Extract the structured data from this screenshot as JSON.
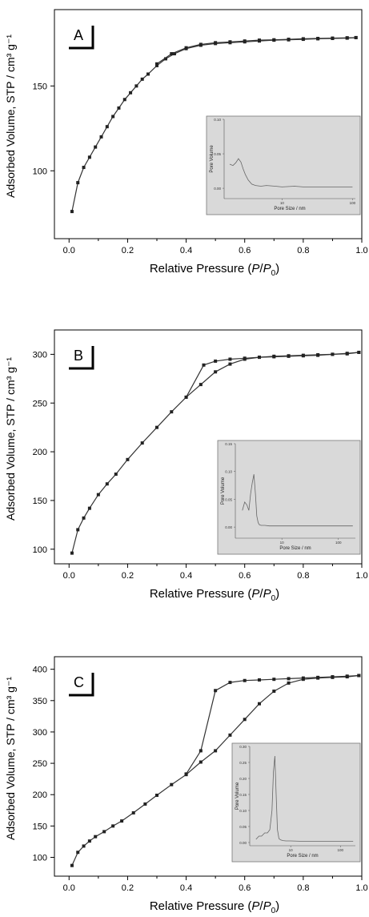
{
  "figure": {
    "y_axis_label": "Adsorbed Volume, STP / cm³ g⁻¹"
  },
  "chart_data": [
    {
      "type": "line",
      "panel_label": "A",
      "xlabel": "Relative Pressure (P/P0)",
      "ylabel": "Adsorbed Volume, STP / cm3 g-1",
      "xlim": [
        -0.05,
        1.0
      ],
      "ylim": [
        60,
        195
      ],
      "xticks": [
        "0.0",
        "0.2",
        "0.4",
        "0.6",
        "0.8",
        "1.0"
      ],
      "yticks": [
        100,
        150
      ],
      "grid": false,
      "series": [
        {
          "x": [
            0.01,
            0.03,
            0.05,
            0.07,
            0.09,
            0.11,
            0.13,
            0.15,
            0.17,
            0.19,
            0.21,
            0.23,
            0.25,
            0.27,
            0.3,
            0.33,
            0.36,
            0.4,
            0.45,
            0.5,
            0.55,
            0.6,
            0.65,
            0.7,
            0.75,
            0.8,
            0.85,
            0.9,
            0.95,
            0.98
          ],
          "y": [
            76,
            93,
            102,
            108,
            114,
            120,
            126,
            132,
            137,
            142,
            146,
            150,
            154,
            157,
            162,
            166,
            169,
            172,
            174,
            175,
            175.5,
            176,
            176.5,
            177,
            177.2,
            177.5,
            177.8,
            178,
            178.2,
            178.5
          ]
        },
        {
          "x": [
            0.98,
            0.95,
            0.9,
            0.85,
            0.8,
            0.75,
            0.7,
            0.65,
            0.6,
            0.55,
            0.5,
            0.45,
            0.4,
            0.35,
            0.3
          ],
          "y": [
            178.5,
            178.4,
            178.2,
            178,
            177.8,
            177.5,
            177.2,
            177,
            176.5,
            176,
            175.5,
            174.5,
            172.5,
            169,
            163
          ]
        }
      ],
      "inset": {
        "xlabel": "Pore Size / nm",
        "ylabel": "Pore Volume",
        "x_scale": "log",
        "xlim": [
          1.5,
          110
        ],
        "ylim": [
          -0.015,
          0.1
        ],
        "xticks": [
          "10",
          "100"
        ],
        "yticks": [
          "0.00",
          "0.05",
          "0.10"
        ],
        "x": [
          1.8,
          2.0,
          2.2,
          2.4,
          2.6,
          2.8,
          3.0,
          3.3,
          3.7,
          4.2,
          5,
          6,
          8,
          10,
          15,
          20,
          30,
          50,
          70,
          100
        ],
        "y": [
          0.035,
          0.033,
          0.037,
          0.043,
          0.038,
          0.028,
          0.02,
          0.012,
          0.006,
          0.004,
          0.003,
          0.004,
          0.003,
          0.002,
          0.003,
          0.002,
          0.002,
          0.002,
          0.002,
          0.002
        ]
      }
    },
    {
      "type": "line",
      "panel_label": "B",
      "xlabel": "Relative Pressure (P/P0)",
      "ylabel": "Adsorbed Volume, STP / cm3 g-1",
      "xlim": [
        -0.05,
        1.0
      ],
      "ylim": [
        85,
        325
      ],
      "xticks": [
        "0.0",
        "0.2",
        "0.4",
        "0.6",
        "0.8",
        "1.0"
      ],
      "yticks": [
        100,
        150,
        200,
        250,
        300
      ],
      "grid": false,
      "series": [
        {
          "x": [
            0.01,
            0.03,
            0.05,
            0.07,
            0.1,
            0.13,
            0.16,
            0.2,
            0.25,
            0.3,
            0.35,
            0.4,
            0.45,
            0.5,
            0.55,
            0.6,
            0.65,
            0.7,
            0.75,
            0.8,
            0.85,
            0.9,
            0.95,
            0.99
          ],
          "y": [
            96,
            120,
            132,
            142,
            156,
            167,
            177,
            192,
            209,
            225,
            241,
            256,
            269,
            282,
            290,
            295,
            297,
            297.5,
            298,
            298.5,
            299,
            300,
            300.5,
            302
          ]
        },
        {
          "x": [
            0.99,
            0.95,
            0.9,
            0.85,
            0.8,
            0.75,
            0.7,
            0.65,
            0.6,
            0.55,
            0.5,
            0.46,
            0.4
          ],
          "y": [
            302,
            301,
            300,
            299.5,
            299,
            298.5,
            298,
            297,
            296,
            295,
            293,
            289,
            256
          ]
        }
      ],
      "inset": {
        "xlabel": "Pore Size / nm",
        "ylabel": "Pore Volume",
        "x_scale": "log",
        "xlim": [
          1.5,
          200
        ],
        "ylim": [
          -0.02,
          0.15
        ],
        "xticks": [
          "10",
          "100"
        ],
        "yticks": [
          "0.00",
          "0.05",
          "0.10",
          "0.15"
        ],
        "x": [
          2.0,
          2.2,
          2.4,
          2.6,
          2.8,
          3.0,
          3.2,
          3.4,
          3.6,
          3.8,
          4.0,
          4.3,
          5,
          6,
          8,
          10,
          15,
          20,
          30,
          50,
          80,
          120,
          180
        ],
        "y": [
          0.03,
          0.045,
          0.04,
          0.03,
          0.06,
          0.08,
          0.095,
          0.06,
          0.02,
          0.008,
          0.004,
          0.003,
          0.003,
          0.002,
          0.002,
          0.002,
          0.002,
          0.002,
          0.002,
          0.002,
          0.002,
          0.002,
          0.002
        ]
      }
    },
    {
      "type": "line",
      "panel_label": "C",
      "xlabel": "Relative Pressure (P/P0)",
      "ylabel": "Adsorbed Volume, STP / cm3 g-1",
      "xlim": [
        -0.05,
        1.0
      ],
      "ylim": [
        70,
        420
      ],
      "xticks": [
        "0.0",
        "0.2",
        "0.4",
        "0.6",
        "0.8",
        "1.0"
      ],
      "yticks": [
        100,
        150,
        200,
        250,
        300,
        350,
        400
      ],
      "grid": false,
      "series": [
        {
          "x": [
            0.01,
            0.03,
            0.05,
            0.07,
            0.09,
            0.12,
            0.15,
            0.18,
            0.22,
            0.26,
            0.3,
            0.35,
            0.4,
            0.45,
            0.5,
            0.55,
            0.6,
            0.65,
            0.7,
            0.75,
            0.8,
            0.85,
            0.9,
            0.95,
            0.99
          ],
          "y": [
            87,
            108,
            118,
            126,
            133,
            141,
            150,
            158,
            171,
            185,
            199,
            216,
            232,
            252,
            270,
            295,
            320,
            345,
            365,
            378,
            384,
            386,
            387,
            388,
            390
          ]
        },
        {
          "x": [
            0.99,
            0.95,
            0.9,
            0.85,
            0.8,
            0.75,
            0.7,
            0.65,
            0.6,
            0.55,
            0.5,
            0.45,
            0.4
          ],
          "y": [
            390,
            389,
            388,
            387,
            386,
            385,
            384,
            383,
            382,
            379,
            366,
            270,
            233
          ]
        }
      ],
      "inset": {
        "xlabel": "Pore Size / nm",
        "ylabel": "Pore Volume",
        "x_scale": "log",
        "xlim": [
          1.5,
          200
        ],
        "ylim": [
          -0.01,
          0.3
        ],
        "xticks": [
          "10",
          "100"
        ],
        "yticks": [
          "0.00",
          "0.05",
          "0.10",
          "0.15",
          "0.20",
          "0.25",
          "0.30"
        ],
        "x": [
          2.0,
          2.3,
          2.6,
          3.0,
          3.4,
          3.8,
          4.2,
          4.5,
          4.8,
          5.1,
          5.4,
          5.8,
          6.3,
          7,
          8,
          10,
          15,
          20,
          30,
          50,
          80,
          120,
          180
        ],
        "y": [
          0.01,
          0.02,
          0.02,
          0.03,
          0.03,
          0.04,
          0.1,
          0.22,
          0.27,
          0.15,
          0.04,
          0.012,
          0.008,
          0.006,
          0.005,
          0.005,
          0.004,
          0.004,
          0.004,
          0.004,
          0.004,
          0.004,
          0.004
        ]
      }
    }
  ]
}
